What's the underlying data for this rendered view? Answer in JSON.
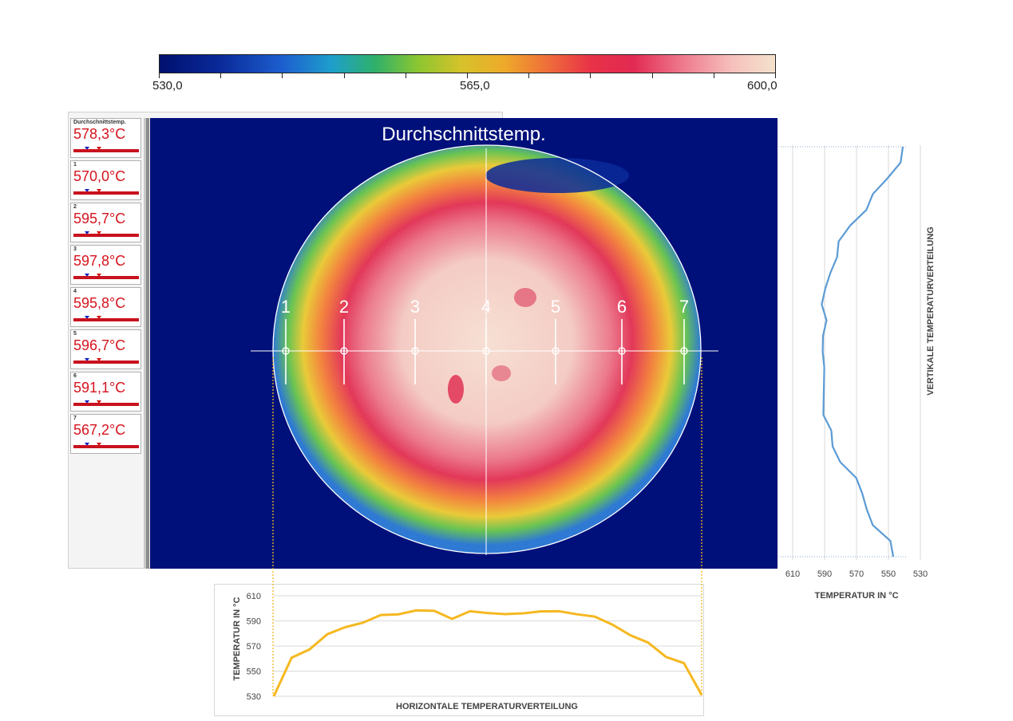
{
  "color_scale": {
    "min_label": "530,0",
    "mid_label": "565,0",
    "max_label": "600,0",
    "colors": [
      "#00106e",
      "#1d5fcf",
      "#1e9fcb",
      "#2fb06a",
      "#8cc630",
      "#d6c22a",
      "#eeaa2a",
      "#e83248",
      "#ee7a8e",
      "#f4e2cc"
    ]
  },
  "measurements": [
    {
      "index": "Durchschnittstemp.",
      "value": "578,3°C"
    },
    {
      "index": "1",
      "value": "570,0°C"
    },
    {
      "index": "2",
      "value": "595,7°C"
    },
    {
      "index": "3",
      "value": "597,8°C"
    },
    {
      "index": "4",
      "value": "595,8°C"
    },
    {
      "index": "5",
      "value": "596,7°C"
    },
    {
      "index": "6",
      "value": "591,1°C"
    },
    {
      "index": "7",
      "value": "567,2°C"
    }
  ],
  "thermal_image": {
    "title": "Durchschnittstemp.",
    "point_labels": [
      "1",
      "2",
      "3",
      "4",
      "5",
      "6",
      "7"
    ],
    "background_color": "#00107a"
  },
  "vertical_chart": {
    "x_ticks": [
      "610",
      "590",
      "570",
      "550",
      "530"
    ],
    "x_title": "TEMPERATUR IN °C",
    "y_title": "VERTIKALE TEMPERATURVERTEILUNG",
    "line_color": "#5b9bd5"
  },
  "horizontal_chart": {
    "y_ticks": [
      "610",
      "590",
      "570",
      "550",
      "530"
    ],
    "y_title": "TEMPERATUR IN °C",
    "x_title": "HORIZONTALE TEMPERATURVERTEILUNG",
    "line_color": "#f5b820"
  },
  "chart_data": [
    {
      "type": "line",
      "title": "",
      "xlabel": "TEMPERATUR IN °C",
      "ylabel": "VERTIKALE TEMPERATURVERTEILUNG",
      "xlim": [
        610,
        530
      ],
      "series": [
        {
          "values": [
            541,
            543,
            550,
            558,
            565,
            574,
            580,
            584,
            587,
            589,
            590,
            590,
            591,
            590,
            592,
            591,
            590,
            589,
            587,
            585,
            579,
            572,
            567,
            563,
            558,
            550,
            547
          ]
        }
      ]
    },
    {
      "type": "line",
      "title": "",
      "xlabel": "HORIZONTALE TEMPERATURVERTEILUNG",
      "ylabel": "TEMPERATUR IN °C",
      "ylim": [
        530,
        610
      ],
      "series": [
        {
          "values": [
            530,
            560,
            568,
            578,
            585,
            590,
            594,
            596,
            597,
            598,
            593,
            597,
            597,
            594,
            596,
            599,
            597,
            596,
            592,
            587,
            580,
            572,
            562,
            555,
            531
          ]
        }
      ]
    }
  ]
}
